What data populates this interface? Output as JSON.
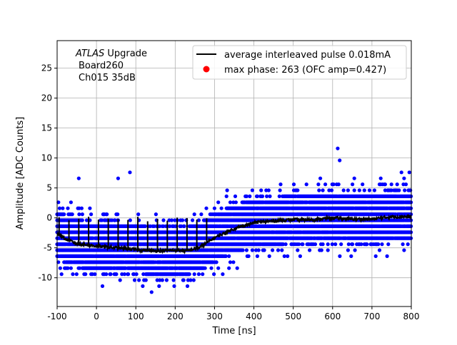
{
  "chart_data": {
    "type": "scatter",
    "title": "",
    "xlabel": "Time [ns]",
    "ylabel": "Amplitude [ADC Counts]",
    "xlim": [
      -100,
      800
    ],
    "ylim": [
      -14.8,
      29.6
    ],
    "xticks": [
      -100,
      0,
      100,
      200,
      300,
      400,
      500,
      600,
      700,
      800
    ],
    "yticks": [
      -10,
      -5,
      0,
      5,
      10,
      15,
      20,
      25
    ],
    "grid": true,
    "annotation": {
      "line1_italic": "ATLAS",
      "line1_rest": " Upgrade",
      "line2": "Board260",
      "line3": "Ch015 35dB"
    },
    "legend": {
      "placement": "top-right",
      "entries": [
        "average interleaved pulse 0.018mA",
        "max phase: 263 (OFC amp=0.427)"
      ]
    },
    "series": [
      {
        "name": "average interleaved pulse 0.018mA",
        "type": "line",
        "color": "#000000",
        "x": [
          -100,
          -80,
          -50,
          0,
          50,
          100,
          150,
          200,
          230,
          260,
          300,
          350,
          400,
          450,
          500,
          550,
          600,
          650,
          700,
          750,
          800
        ],
        "y": [
          -2.5,
          -3.5,
          -4.3,
          -4.7,
          -5.0,
          -5.3,
          -5.5,
          -5.4,
          -5.5,
          -5.0,
          -3.3,
          -1.8,
          -0.8,
          -0.5,
          -0.3,
          -0.3,
          0.0,
          -0.2,
          -0.2,
          0.2,
          0.2
        ],
        "spikes": {
          "x_start": -95,
          "x_end": 290,
          "step": 25,
          "top": 0.0
        }
      },
      {
        "name": "samples",
        "type": "scatter",
        "color": "#0000ff",
        "level_step": 1,
        "level_offset": 0.6,
        "core_halfwidth": 4,
        "tail_halfwidth": 7,
        "outliers": [
          [
            613,
            11.6
          ],
          [
            618,
            9.6
          ],
          [
            85,
            7.6
          ],
          [
            -45,
            6.6
          ],
          [
            55,
            6.6
          ],
          [
            795,
            7.6
          ],
          [
            775,
            7.6
          ]
        ]
      },
      {
        "name": "max phase: 263 (OFC amp=0.427)",
        "type": "marker",
        "color": "#ff0000",
        "x": [],
        "y": []
      }
    ]
  }
}
